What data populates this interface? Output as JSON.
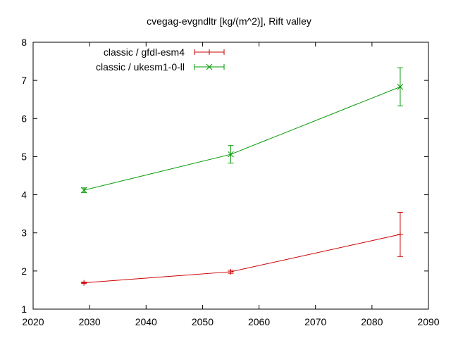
{
  "chart_data": {
    "type": "line",
    "title": "cvegag-evgndltr [kg/(m^2)], Rift valley",
    "xlabel": "",
    "ylabel": "",
    "xlim": [
      2020,
      2090
    ],
    "ylim": [
      1,
      8
    ],
    "xticks": [
      2020,
      2030,
      2040,
      2050,
      2060,
      2070,
      2080,
      2090
    ],
    "yticks": [
      1,
      2,
      3,
      4,
      5,
      6,
      7,
      8
    ],
    "grid": false,
    "legend_position": "top-left",
    "series": [
      {
        "name": "classic / gfdl-esm4",
        "color": "#cc0000",
        "marker": "plus",
        "x": [
          2029,
          2055,
          2085
        ],
        "y": [
          1.69,
          1.98,
          2.96
        ],
        "err": [
          0.02,
          0.04,
          0.58
        ]
      },
      {
        "name": "classic / ukesm1-0-ll",
        "color": "#009900",
        "marker": "cross",
        "x": [
          2029,
          2055,
          2085
        ],
        "y": [
          4.12,
          5.06,
          6.83
        ],
        "err": [
          0.06,
          0.23,
          0.5
        ]
      }
    ]
  }
}
